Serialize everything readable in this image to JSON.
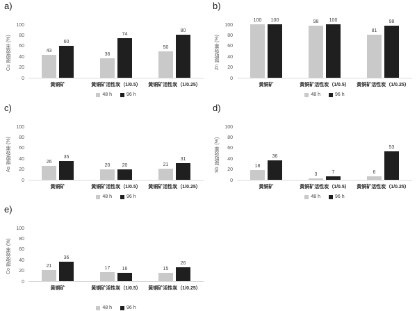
{
  "colors": {
    "series_48h": "#c9c9c9",
    "series_96h": "#1f1f1f",
    "axis_line": "#d9d9d9",
    "tick_text": "#595959"
  },
  "legend": {
    "series": [
      {
        "label": "48 h",
        "color": "#c9c9c9"
      },
      {
        "label": "96 h",
        "color": "#1f1f1f"
      }
    ]
  },
  "chart_data": [
    {
      "id": "a",
      "type": "bar",
      "panel": "a)",
      "title": "",
      "xlabel": "",
      "ylabel": "Cu 提取效率 (%)",
      "ylim": [
        0,
        100
      ],
      "yticks": [
        0,
        20,
        40,
        60,
        80,
        100
      ],
      "grid": false,
      "legend_position": "bottom",
      "categories": [
        "黄铜矿",
        "黄铜矿活性炭（1/0.5）",
        "黄铜矿活性炭（1/0.25）"
      ],
      "series": [
        {
          "name": "48 h",
          "values": [
            43,
            36,
            50
          ]
        },
        {
          "name": "96 h",
          "values": [
            60,
            74,
            80
          ]
        }
      ]
    },
    {
      "id": "b",
      "type": "bar",
      "panel": "b)",
      "title": "",
      "xlabel": "",
      "ylabel": "Zn 提取效率 (%)",
      "ylim": [
        0,
        100
      ],
      "yticks": [
        0,
        20,
        40,
        60,
        80,
        100
      ],
      "grid": false,
      "legend_position": "bottom",
      "categories": [
        "黄铜矿",
        "黄铜矿活性炭（1/0.5）",
        "黄铜矿活性炭（1/0.25）"
      ],
      "series": [
        {
          "name": "48 h",
          "values": [
            100,
            98,
            81
          ]
        },
        {
          "name": "96 h",
          "values": [
            100,
            100,
            98
          ]
        }
      ]
    },
    {
      "id": "c",
      "type": "bar",
      "panel": "c)",
      "title": "",
      "xlabel": "",
      "ylabel": "As 提取效率 (%)",
      "ylim": [
        0,
        100
      ],
      "yticks": [
        0,
        20,
        40,
        60,
        80,
        100
      ],
      "grid": false,
      "legend_position": "bottom",
      "categories": [
        "黄铜矿",
        "黄铜矿活性炭（1/0.5）",
        "黄铜矿活性炭（1/0.25）"
      ],
      "series": [
        {
          "name": "48 h",
          "values": [
            26,
            20,
            21
          ]
        },
        {
          "name": "96 h",
          "values": [
            35,
            20,
            31
          ]
        }
      ]
    },
    {
      "id": "d",
      "type": "bar",
      "panel": "d)",
      "title": "",
      "xlabel": "",
      "ylabel": "Sb 提取效率 (%)",
      "ylim": [
        0,
        100
      ],
      "yticks": [
        0,
        20,
        40,
        60,
        80,
        100
      ],
      "grid": false,
      "legend_position": "bottom",
      "categories": [
        "黄铜矿",
        "黄铜矿活性炭（1/0.5）",
        "黄铜矿活性炭（1/0.25）"
      ],
      "series": [
        {
          "name": "48 h",
          "values": [
            18,
            3,
            6
          ]
        },
        {
          "name": "96 h",
          "values": [
            36,
            7,
            53
          ]
        }
      ]
    },
    {
      "id": "e",
      "type": "bar",
      "panel": "e)",
      "title": "",
      "xlabel": "",
      "ylabel": "Co 提取效率 (%)",
      "ylim": [
        0,
        100
      ],
      "yticks": [
        0,
        20,
        40,
        60,
        80,
        100
      ],
      "grid": false,
      "legend_position": "bottom",
      "categories": [
        "黄铜矿",
        "黄铜矿活性炭（1/0.5）",
        "黄铜矿活性炭（1/0.25）"
      ],
      "series": [
        {
          "name": "48 h",
          "values": [
            21,
            17,
            15
          ]
        },
        {
          "name": "96 h",
          "values": [
            36,
            16,
            26
          ]
        }
      ]
    }
  ]
}
